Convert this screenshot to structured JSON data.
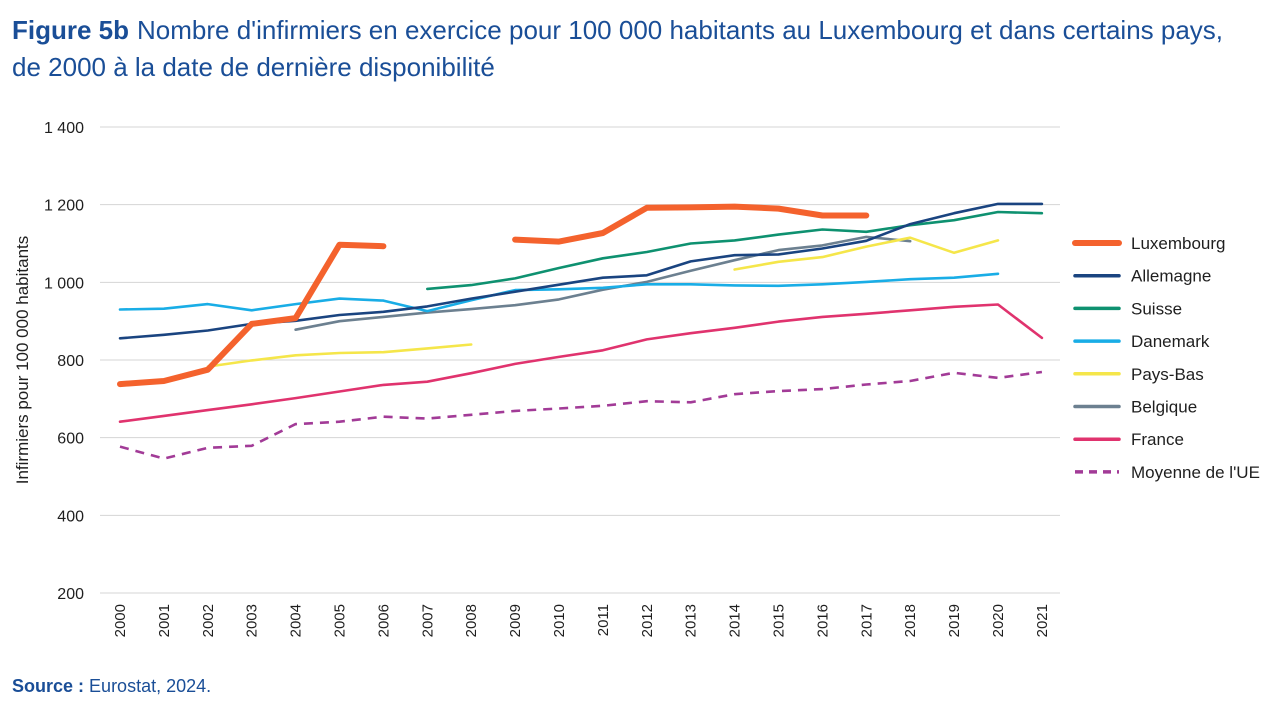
{
  "figure": {
    "label": "Figure 5b",
    "title_line1": "Nombre d'infirmiers en exercice pour 100 000 habitants au Luxembourg et dans certains pays,",
    "title_line2": "de 2000 à la date de dernière disponibilité"
  },
  "source": {
    "label": "Source :",
    "text": "Eurostat, 2024."
  },
  "chart_data": {
    "type": "line",
    "ylabel": "Infirmiers pour 100 000 habitants",
    "xlabel": "",
    "ylim": [
      200,
      1400
    ],
    "yticks": [
      200,
      400,
      600,
      800,
      1000,
      1200,
      1400
    ],
    "ytick_labels": [
      "200",
      "400",
      "600",
      "800",
      "1 000",
      "1 200",
      "1 400"
    ],
    "grid": true,
    "legend_position": "right",
    "x": [
      "2000",
      "2001",
      "2002",
      "2003",
      "2004",
      "2005",
      "2006",
      "2007",
      "2008",
      "2009",
      "2010",
      "2011",
      "2012",
      "2013",
      "2014",
      "2015",
      "2016",
      "2017",
      "2018",
      "2019",
      "2020",
      "2021"
    ],
    "series": [
      {
        "name": "Luxembourg",
        "color": "#f4622d",
        "dashed": false,
        "thick": true,
        "values": [
          738,
          746,
          775,
          893,
          908,
          1097,
          1093,
          null,
          null,
          1110,
          1105,
          1127,
          1192,
          1193,
          1195,
          1190,
          1172,
          1172,
          null,
          null,
          null,
          null
        ]
      },
      {
        "name": "Allemagne",
        "color": "#1a4480",
        "dashed": false,
        "thick": false,
        "values": [
          856,
          865,
          876,
          893,
          901,
          916,
          924,
          938,
          958,
          976,
          994,
          1012,
          1018,
          1054,
          1070,
          1072,
          1087,
          1107,
          1150,
          1178,
          1202,
          1202
        ]
      },
      {
        "name": "Suisse",
        "color": "#0e9170",
        "dashed": false,
        "thick": false,
        "values": [
          null,
          null,
          null,
          null,
          null,
          null,
          null,
          983,
          993,
          1010,
          1037,
          1062,
          1078,
          1100,
          1108,
          1123,
          1136,
          1130,
          1147,
          1160,
          1181,
          1178
        ]
      },
      {
        "name": "Danemark",
        "color": "#19ade6",
        "dashed": false,
        "thick": false,
        "values": [
          930,
          932,
          944,
          928,
          944,
          958,
          953,
          926,
          954,
          980,
          982,
          986,
          995,
          995,
          992,
          991,
          995,
          1001,
          1008,
          1012,
          1022,
          null
        ]
      },
      {
        "name": "Pays-Bas",
        "color": "#f5e64a",
        "dashed": false,
        "thick": false,
        "values": [
          null,
          null,
          783,
          799,
          812,
          818,
          820,
          830,
          840,
          null,
          null,
          null,
          null,
          null,
          1033,
          1053,
          1065,
          1092,
          1115,
          1076,
          1108,
          null
        ]
      },
      {
        "name": "Belgique",
        "color": "#6c8090",
        "dashed": false,
        "thick": false,
        "values": [
          null,
          null,
          null,
          null,
          878,
          900,
          911,
          922,
          931,
          941,
          956,
          981,
          1001,
          1030,
          1057,
          1083,
          1095,
          1117,
          1106,
          null,
          null,
          null
        ]
      },
      {
        "name": "France",
        "color": "#e0336e",
        "dashed": false,
        "thick": false,
        "values": [
          641,
          656,
          671,
          686,
          702,
          719,
          736,
          744,
          766,
          790,
          808,
          825,
          853,
          869,
          883,
          899,
          911,
          919,
          928,
          937,
          943,
          857
        ]
      },
      {
        "name": "Moyenne de l'UE",
        "color": "#a23b97",
        "dashed": true,
        "thick": false,
        "values": [
          577,
          546,
          574,
          579,
          635,
          641,
          654,
          649,
          659,
          669,
          675,
          682,
          694,
          691,
          712,
          720,
          725,
          737,
          746,
          767,
          754,
          769
        ]
      }
    ]
  }
}
